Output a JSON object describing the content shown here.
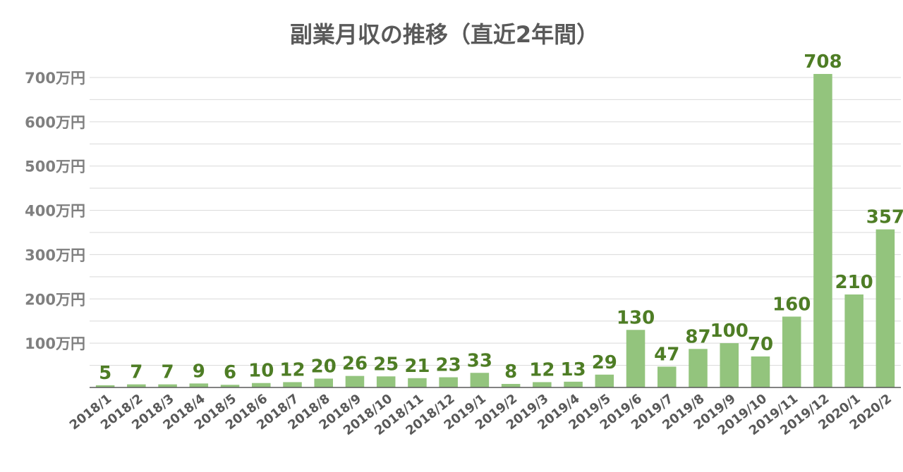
{
  "chart_data": {
    "type": "bar",
    "title": "副業月収の推移（直近2年間）",
    "xlabel": "",
    "ylabel": "",
    "ylim": [
      0,
      700
    ],
    "yticks": [
      {
        "value": 100,
        "label": "100万円"
      },
      {
        "value": 200,
        "label": "200万円"
      },
      {
        "value": 300,
        "label": "300万円"
      },
      {
        "value": 400,
        "label": "400万円"
      },
      {
        "value": 500,
        "label": "500万円"
      },
      {
        "value": 600,
        "label": "600万円"
      },
      {
        "value": 700,
        "label": "700万円"
      }
    ],
    "grid": true,
    "legend": "none",
    "categories": [
      "2018/1",
      "2018/2",
      "2018/3",
      "2018/4",
      "2018/5",
      "2018/6",
      "2018/7",
      "2018/8",
      "2018/9",
      "2018/10",
      "2018/11",
      "2018/12",
      "2019/1",
      "2019/2",
      "2019/3",
      "2019/4",
      "2019/5",
      "2019/6",
      "2019/7",
      "2019/8",
      "2019/9",
      "2019/10",
      "2019/11",
      "2019/12",
      "2020/1",
      "2020/2"
    ],
    "values": [
      5,
      7,
      7,
      9,
      6,
      10,
      12,
      20,
      26,
      25,
      21,
      23,
      33,
      8,
      12,
      13,
      29,
      130,
      47,
      87,
      100,
      70,
      160,
      708,
      210,
      357
    ],
    "colors": {
      "bar": "#93c47d",
      "label": "#4e7d25",
      "grid": "#d9d9d9",
      "axis": "#595959"
    }
  }
}
